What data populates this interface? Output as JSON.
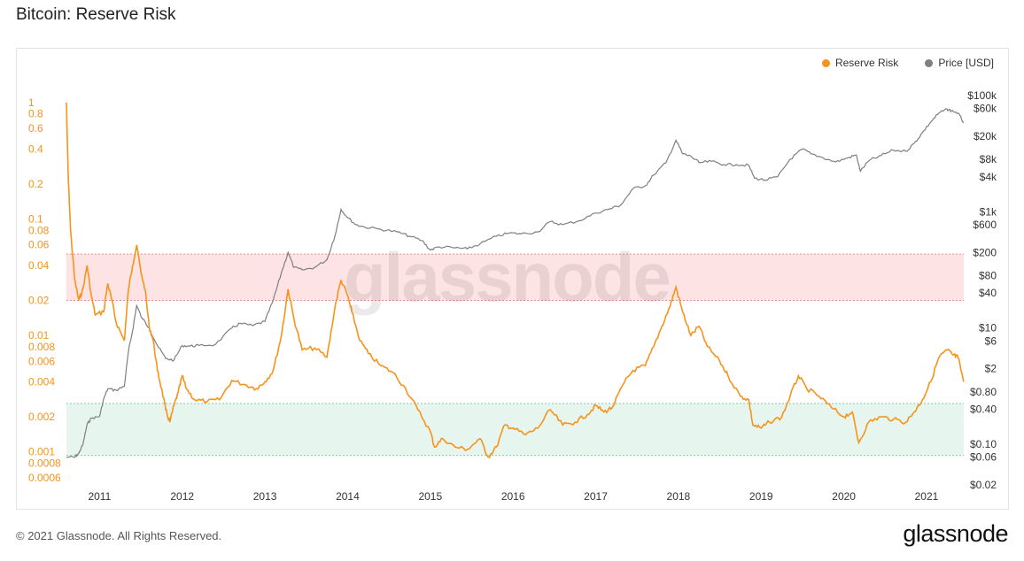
{
  "header": {
    "title": "Bitcoin: Reserve Risk"
  },
  "legend": {
    "reserve_risk_label": "Reserve Risk",
    "price_label": "Price [USD]"
  },
  "watermark": "glassnode",
  "footer": {
    "copyright": "© 2021 Glassnode. All Rights Reserved.",
    "logo": "glassnode"
  },
  "colors": {
    "reserve_risk": "#f7931a",
    "price": "#7f7f7f",
    "red_zone": "#fde3e3",
    "green_zone": "#e6f6ef"
  },
  "chart_data": {
    "type": "line",
    "title": "Bitcoin: Reserve Risk",
    "x_ticks": [
      "2011",
      "2012",
      "2013",
      "2014",
      "2015",
      "2016",
      "2017",
      "2018",
      "2019",
      "2020",
      "2021"
    ],
    "x_range": [
      2010.6,
      2021.45
    ],
    "y_left": {
      "scale": "log",
      "range": [
        0.00052,
        1.15
      ],
      "ticks": [
        {
          "v": 1,
          "label": "1"
        },
        {
          "v": 0.8,
          "label": "0.8"
        },
        {
          "v": 0.6,
          "label": "0.6"
        },
        {
          "v": 0.4,
          "label": "0.4"
        },
        {
          "v": 0.2,
          "label": "0.2"
        },
        {
          "v": 0.1,
          "label": "0.1"
        },
        {
          "v": 0.08,
          "label": "0.08"
        },
        {
          "v": 0.06,
          "label": "0.06"
        },
        {
          "v": 0.04,
          "label": "0.04"
        },
        {
          "v": 0.02,
          "label": "0.02"
        },
        {
          "v": 0.01,
          "label": "0.01"
        },
        {
          "v": 0.008,
          "label": "0.008"
        },
        {
          "v": 0.006,
          "label": "0.006"
        },
        {
          "v": 0.004,
          "label": "0.004"
        },
        {
          "v": 0.002,
          "label": "0.002"
        },
        {
          "v": 0.001,
          "label": "0.001"
        },
        {
          "v": 0.0008,
          "label": "0.0008"
        },
        {
          "v": 0.0006,
          "label": "0.0006"
        }
      ]
    },
    "y_right": {
      "scale": "log",
      "range": [
        0.02,
        100000
      ],
      "ticks": [
        {
          "v": 100000,
          "label": "$100k"
        },
        {
          "v": 60000,
          "label": "$60k"
        },
        {
          "v": 20000,
          "label": "$20k"
        },
        {
          "v": 8000,
          "label": "$8k"
        },
        {
          "v": 4000,
          "label": "$4k"
        },
        {
          "v": 1000,
          "label": "$1k"
        },
        {
          "v": 600,
          "label": "$600"
        },
        {
          "v": 200,
          "label": "$200"
        },
        {
          "v": 80,
          "label": "$80"
        },
        {
          "v": 40,
          "label": "$40"
        },
        {
          "v": 10,
          "label": "$10"
        },
        {
          "v": 6,
          "label": "$6"
        },
        {
          "v": 2,
          "label": "$2"
        },
        {
          "v": 0.8,
          "label": "$0.80"
        },
        {
          "v": 0.4,
          "label": "$0.40"
        },
        {
          "v": 0.1,
          "label": "$0.10"
        },
        {
          "v": 0.06,
          "label": "$0.06"
        },
        {
          "v": 0.02,
          "label": "$0.02"
        }
      ]
    },
    "bands": [
      {
        "name": "red",
        "from": 0.02,
        "to": 0.05
      },
      {
        "name": "green",
        "from": 0.00093,
        "to": 0.0026
      }
    ],
    "series": [
      {
        "name": "Reserve Risk",
        "axis": "left",
        "points": [
          [
            2010.6,
            1.0
          ],
          [
            2010.62,
            0.25
          ],
          [
            2010.65,
            0.08
          ],
          [
            2010.7,
            0.03
          ],
          [
            2010.75,
            0.02
          ],
          [
            2010.8,
            0.025
          ],
          [
            2010.85,
            0.04
          ],
          [
            2010.9,
            0.022
          ],
          [
            2010.95,
            0.015
          ],
          [
            2011.05,
            0.016
          ],
          [
            2011.1,
            0.028
          ],
          [
            2011.15,
            0.02
          ],
          [
            2011.2,
            0.013
          ],
          [
            2011.3,
            0.009
          ],
          [
            2011.35,
            0.025
          ],
          [
            2011.4,
            0.04
          ],
          [
            2011.45,
            0.06
          ],
          [
            2011.5,
            0.035
          ],
          [
            2011.55,
            0.025
          ],
          [
            2011.6,
            0.012
          ],
          [
            2011.65,
            0.009
          ],
          [
            2011.7,
            0.005
          ],
          [
            2011.75,
            0.0035
          ],
          [
            2011.8,
            0.0023
          ],
          [
            2011.85,
            0.0018
          ],
          [
            2011.9,
            0.0025
          ],
          [
            2011.95,
            0.0032
          ],
          [
            2012.0,
            0.0045
          ],
          [
            2012.05,
            0.0035
          ],
          [
            2012.15,
            0.0028
          ],
          [
            2012.3,
            0.0027
          ],
          [
            2012.45,
            0.0028
          ],
          [
            2012.6,
            0.0041
          ],
          [
            2012.75,
            0.0038
          ],
          [
            2012.9,
            0.0035
          ],
          [
            2013.0,
            0.004
          ],
          [
            2013.1,
            0.005
          ],
          [
            2013.2,
            0.01
          ],
          [
            2013.28,
            0.025
          ],
          [
            2013.35,
            0.014
          ],
          [
            2013.45,
            0.0075
          ],
          [
            2013.6,
            0.0078
          ],
          [
            2013.75,
            0.0065
          ],
          [
            2013.85,
            0.018
          ],
          [
            2013.92,
            0.03
          ],
          [
            2014.0,
            0.022
          ],
          [
            2014.05,
            0.016
          ],
          [
            2014.15,
            0.009
          ],
          [
            2014.25,
            0.007
          ],
          [
            2014.4,
            0.0055
          ],
          [
            2014.55,
            0.0048
          ],
          [
            2014.7,
            0.0035
          ],
          [
            2014.85,
            0.0023
          ],
          [
            2015.0,
            0.0015
          ],
          [
            2015.05,
            0.0011
          ],
          [
            2015.15,
            0.0013
          ],
          [
            2015.3,
            0.0011
          ],
          [
            2015.45,
            0.00105
          ],
          [
            2015.6,
            0.0013
          ],
          [
            2015.7,
            0.0009
          ],
          [
            2015.8,
            0.0011
          ],
          [
            2015.9,
            0.0017
          ],
          [
            2016.0,
            0.0016
          ],
          [
            2016.15,
            0.0014
          ],
          [
            2016.3,
            0.0016
          ],
          [
            2016.45,
            0.0023
          ],
          [
            2016.6,
            0.0017
          ],
          [
            2016.75,
            0.0018
          ],
          [
            2016.9,
            0.0021
          ],
          [
            2017.0,
            0.0025
          ],
          [
            2017.1,
            0.0022
          ],
          [
            2017.2,
            0.0024
          ],
          [
            2017.35,
            0.004
          ],
          [
            2017.45,
            0.005
          ],
          [
            2017.6,
            0.0055
          ],
          [
            2017.7,
            0.008
          ],
          [
            2017.8,
            0.012
          ],
          [
            2017.9,
            0.018
          ],
          [
            2017.97,
            0.026
          ],
          [
            2018.05,
            0.016
          ],
          [
            2018.15,
            0.01
          ],
          [
            2018.25,
            0.012
          ],
          [
            2018.35,
            0.008
          ],
          [
            2018.5,
            0.006
          ],
          [
            2018.6,
            0.0045
          ],
          [
            2018.75,
            0.003
          ],
          [
            2018.85,
            0.0028
          ],
          [
            2018.9,
            0.0017
          ],
          [
            2019.0,
            0.0016
          ],
          [
            2019.1,
            0.0018
          ],
          [
            2019.25,
            0.002
          ],
          [
            2019.35,
            0.003
          ],
          [
            2019.45,
            0.0045
          ],
          [
            2019.55,
            0.0035
          ],
          [
            2019.7,
            0.003
          ],
          [
            2019.85,
            0.0024
          ],
          [
            2020.0,
            0.002
          ],
          [
            2020.1,
            0.0022
          ],
          [
            2020.18,
            0.0012
          ],
          [
            2020.3,
            0.0018
          ],
          [
            2020.45,
            0.002
          ],
          [
            2020.6,
            0.0019
          ],
          [
            2020.75,
            0.0018
          ],
          [
            2020.85,
            0.0022
          ],
          [
            2020.95,
            0.0028
          ],
          [
            2021.05,
            0.004
          ],
          [
            2021.15,
            0.0065
          ],
          [
            2021.25,
            0.0075
          ],
          [
            2021.32,
            0.0068
          ],
          [
            2021.38,
            0.0065
          ],
          [
            2021.45,
            0.004
          ]
        ]
      },
      {
        "name": "Price [USD]",
        "axis": "right",
        "points": [
          [
            2010.6,
            0.06
          ],
          [
            2010.7,
            0.06
          ],
          [
            2010.75,
            0.07
          ],
          [
            2010.8,
            0.1
          ],
          [
            2010.85,
            0.22
          ],
          [
            2010.9,
            0.28
          ],
          [
            2011.0,
            0.3
          ],
          [
            2011.05,
            0.6
          ],
          [
            2011.1,
            0.9
          ],
          [
            2011.2,
            0.85
          ],
          [
            2011.3,
            1.0
          ],
          [
            2011.35,
            4
          ],
          [
            2011.4,
            9
          ],
          [
            2011.45,
            25
          ],
          [
            2011.5,
            16
          ],
          [
            2011.6,
            10
          ],
          [
            2011.7,
            5
          ],
          [
            2011.8,
            3
          ],
          [
            2011.9,
            2.8
          ],
          [
            2012.0,
            5
          ],
          [
            2012.1,
            4.9
          ],
          [
            2012.2,
            5
          ],
          [
            2012.4,
            5.2
          ],
          [
            2012.6,
            10
          ],
          [
            2012.7,
            12
          ],
          [
            2012.85,
            11
          ],
          [
            2013.0,
            13
          ],
          [
            2013.1,
            30
          ],
          [
            2013.2,
            90
          ],
          [
            2013.28,
            200
          ],
          [
            2013.35,
            110
          ],
          [
            2013.45,
            100
          ],
          [
            2013.6,
            110
          ],
          [
            2013.75,
            150
          ],
          [
            2013.85,
            400
          ],
          [
            2013.92,
            1100
          ],
          [
            2014.0,
            800
          ],
          [
            2014.1,
            600
          ],
          [
            2014.2,
            550
          ],
          [
            2014.4,
            500
          ],
          [
            2014.6,
            450
          ],
          [
            2014.75,
            380
          ],
          [
            2014.9,
            320
          ],
          [
            2015.0,
            220
          ],
          [
            2015.1,
            250
          ],
          [
            2015.3,
            240
          ],
          [
            2015.45,
            230
          ],
          [
            2015.6,
            280
          ],
          [
            2015.8,
            380
          ],
          [
            2015.95,
            430
          ],
          [
            2016.1,
            420
          ],
          [
            2016.3,
            450
          ],
          [
            2016.45,
            680
          ],
          [
            2016.6,
            600
          ],
          [
            2016.8,
            700
          ],
          [
            2017.0,
            950
          ],
          [
            2017.15,
            1100
          ],
          [
            2017.3,
            1300
          ],
          [
            2017.45,
            2500
          ],
          [
            2017.6,
            2800
          ],
          [
            2017.7,
            4300
          ],
          [
            2017.85,
            7000
          ],
          [
            2017.97,
            17000
          ],
          [
            2018.05,
            10000
          ],
          [
            2018.15,
            9000
          ],
          [
            2018.25,
            7000
          ],
          [
            2018.4,
            7400
          ],
          [
            2018.55,
            6500
          ],
          [
            2018.7,
            6500
          ],
          [
            2018.85,
            6300
          ],
          [
            2018.92,
            3800
          ],
          [
            2019.05,
            3500
          ],
          [
            2019.2,
            4000
          ],
          [
            2019.35,
            8000
          ],
          [
            2019.5,
            12000
          ],
          [
            2019.6,
            10000
          ],
          [
            2019.75,
            8500
          ],
          [
            2019.9,
            7200
          ],
          [
            2020.05,
            8500
          ],
          [
            2020.15,
            9500
          ],
          [
            2020.2,
            5000
          ],
          [
            2020.3,
            7500
          ],
          [
            2020.45,
            9300
          ],
          [
            2020.6,
            11500
          ],
          [
            2020.75,
            11000
          ],
          [
            2020.85,
            15000
          ],
          [
            2020.95,
            23000
          ],
          [
            2021.05,
            35000
          ],
          [
            2021.15,
            50000
          ],
          [
            2021.25,
            58000
          ],
          [
            2021.3,
            55000
          ],
          [
            2021.38,
            50000
          ],
          [
            2021.45,
            34000
          ]
        ]
      }
    ]
  }
}
